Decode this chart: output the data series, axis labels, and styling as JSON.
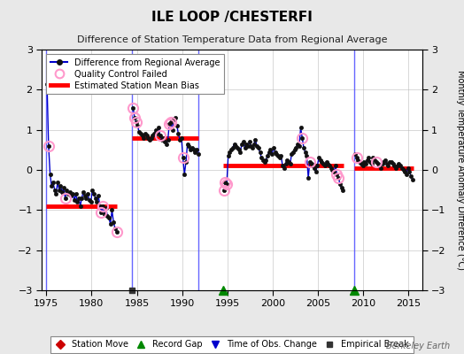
{
  "title": "ILE LOOP /CHESTERFI",
  "subtitle": "Difference of Station Temperature Data from Regional Average",
  "ylabel_right": "Monthly Temperature Anomaly Difference (°C)",
  "xlim": [
    1974.5,
    2016.5
  ],
  "ylim": [
    -3,
    3
  ],
  "yticks": [
    -3,
    -2,
    -1,
    0,
    1,
    2,
    3
  ],
  "xticks": [
    1975,
    1980,
    1985,
    1990,
    1995,
    2000,
    2005,
    2010,
    2015
  ],
  "bg_color": "#e8e8e8",
  "plot_bg_color": "#ffffff",
  "segments": [
    {
      "x_start": 1975.0,
      "x_end": 1982.8,
      "bias": -0.9,
      "data_x": [
        1975.08,
        1975.25,
        1975.42,
        1975.58,
        1975.75,
        1975.92,
        1976.08,
        1976.25,
        1976.42,
        1976.58,
        1976.75,
        1976.92,
        1977.08,
        1977.25,
        1977.42,
        1977.58,
        1977.75,
        1977.92,
        1978.08,
        1978.25,
        1978.42,
        1978.58,
        1978.75,
        1978.92,
        1979.08,
        1979.25,
        1979.42,
        1979.58,
        1979.75,
        1979.92,
        1980.08,
        1980.25,
        1980.42,
        1980.58,
        1980.75,
        1980.92,
        1981.08,
        1981.25,
        1981.42,
        1981.58,
        1981.75,
        1981.92,
        1982.08,
        1982.25,
        1982.42,
        1982.58,
        1982.75
      ],
      "data_y": [
        2.15,
        0.6,
        -0.1,
        -0.4,
        -0.3,
        -0.5,
        -0.6,
        -0.3,
        -0.5,
        -0.4,
        -0.55,
        -0.45,
        -0.7,
        -0.5,
        -0.6,
        -0.55,
        -0.65,
        -0.6,
        -0.75,
        -0.6,
        -0.8,
        -0.7,
        -0.9,
        -0.7,
        -0.55,
        -0.65,
        -0.7,
        -0.6,
        -0.75,
        -0.8,
        -0.5,
        -0.6,
        -0.7,
        -0.8,
        -0.65,
        -0.9,
        -1.05,
        -0.9,
        -1.1,
        -0.95,
        -1.15,
        -1.2,
        -1.35,
        -1.0,
        -1.3,
        -1.45,
        -1.55
      ],
      "qc_failed_idx": [
        1,
        12,
        36,
        37,
        46
      ]
    },
    {
      "x_start": 1984.5,
      "x_end": 1991.8,
      "bias": 0.8,
      "data_x": [
        1984.58,
        1984.75,
        1984.92,
        1985.08,
        1985.25,
        1985.42,
        1985.58,
        1985.75,
        1985.92,
        1986.08,
        1986.25,
        1986.42,
        1986.58,
        1986.75,
        1986.92,
        1987.08,
        1987.25,
        1987.42,
        1987.58,
        1987.75,
        1987.92,
        1988.08,
        1988.25,
        1988.42,
        1988.58,
        1988.75,
        1988.92,
        1989.08,
        1989.25,
        1989.42,
        1989.58,
        1989.75,
        1989.92,
        1990.08,
        1990.25,
        1990.42,
        1990.58,
        1990.75,
        1990.92,
        1991.08,
        1991.25,
        1991.42,
        1991.58,
        1991.75
      ],
      "data_y": [
        1.55,
        1.3,
        1.2,
        1.1,
        0.95,
        0.9,
        0.85,
        0.8,
        0.9,
        0.85,
        0.8,
        0.75,
        0.8,
        0.85,
        0.9,
        1.0,
        0.9,
        1.05,
        0.85,
        0.75,
        0.8,
        0.7,
        0.65,
        0.75,
        1.15,
        1.2,
        1.0,
        1.25,
        1.3,
        1.1,
        0.9,
        0.75,
        0.8,
        0.3,
        -0.1,
        0.2,
        0.65,
        0.6,
        0.5,
        0.55,
        0.5,
        0.45,
        0.5,
        0.4
      ],
      "qc_failed_idx": [
        0,
        1,
        2,
        18,
        24,
        25,
        33
      ]
    },
    {
      "x_start": 1994.5,
      "x_end": 2007.8,
      "bias": 0.1,
      "data_x": [
        1994.58,
        1994.75,
        1994.92,
        1995.08,
        1995.25,
        1995.42,
        1995.58,
        1995.75,
        1995.92,
        1996.08,
        1996.25,
        1996.42,
        1996.58,
        1996.75,
        1996.92,
        1997.08,
        1997.25,
        1997.42,
        1997.58,
        1997.75,
        1997.92,
        1998.08,
        1998.25,
        1998.42,
        1998.58,
        1998.75,
        1998.92,
        1999.08,
        1999.25,
        1999.42,
        1999.58,
        1999.75,
        1999.92,
        2000.08,
        2000.25,
        2000.42,
        2000.58,
        2000.75,
        2000.92,
        2001.08,
        2001.25,
        2001.42,
        2001.58,
        2001.75,
        2001.92,
        2002.08,
        2002.25,
        2002.42,
        2002.58,
        2002.75,
        2002.92,
        2003.08,
        2003.25,
        2003.42,
        2003.58,
        2003.75,
        2003.92,
        2004.08,
        2004.25,
        2004.42,
        2004.58,
        2004.75,
        2004.92,
        2005.08,
        2005.25,
        2005.42,
        2005.58,
        2005.75,
        2005.92,
        2006.08,
        2006.25,
        2006.42,
        2006.58,
        2006.75,
        2006.92,
        2007.08,
        2007.25,
        2007.42,
        2007.58,
        2007.75
      ],
      "data_y": [
        -0.5,
        -0.3,
        -0.35,
        0.35,
        0.45,
        0.5,
        0.55,
        0.65,
        0.6,
        0.55,
        0.5,
        0.45,
        0.65,
        0.7,
        0.55,
        0.65,
        0.6,
        0.7,
        0.6,
        0.55,
        0.65,
        0.75,
        0.6,
        0.55,
        0.45,
        0.3,
        0.25,
        0.2,
        0.25,
        0.35,
        0.45,
        0.5,
        0.4,
        0.55,
        0.45,
        0.4,
        0.35,
        0.3,
        0.35,
        0.1,
        0.05,
        0.15,
        0.25,
        0.2,
        0.15,
        0.4,
        0.45,
        0.5,
        0.55,
        0.65,
        0.6,
        1.05,
        0.8,
        0.55,
        0.45,
        0.35,
        -0.2,
        0.2,
        0.15,
        0.1,
        0.05,
        -0.05,
        0.1,
        0.3,
        0.25,
        0.2,
        0.15,
        0.1,
        0.2,
        0.15,
        0.1,
        0.05,
        0.0,
        -0.05,
        0.1,
        -0.1,
        -0.2,
        -0.35,
        -0.45,
        -0.5
      ],
      "qc_failed_idx": [
        0,
        1,
        2,
        52,
        57,
        75,
        76
      ]
    },
    {
      "x_start": 2009.0,
      "x_end": 2015.5,
      "bias": 0.05,
      "data_x": [
        2009.08,
        2009.25,
        2009.42,
        2009.58,
        2009.75,
        2009.92,
        2010.08,
        2010.25,
        2010.42,
        2010.58,
        2010.75,
        2010.92,
        2011.08,
        2011.25,
        2011.42,
        2011.58,
        2011.75,
        2011.92,
        2012.08,
        2012.25,
        2012.42,
        2012.58,
        2012.75,
        2012.92,
        2013.08,
        2013.25,
        2013.42,
        2013.58,
        2013.75,
        2013.92,
        2014.08,
        2014.25,
        2014.42,
        2014.58,
        2014.75,
        2014.92,
        2015.08,
        2015.25,
        2015.42
      ],
      "data_y": [
        0.4,
        0.3,
        0.25,
        0.2,
        0.15,
        0.1,
        0.2,
        0.15,
        0.25,
        0.3,
        0.2,
        0.15,
        0.3,
        0.25,
        0.2,
        0.15,
        0.1,
        0.05,
        0.15,
        0.2,
        0.25,
        0.15,
        0.1,
        0.2,
        0.2,
        0.15,
        0.1,
        0.05,
        0.1,
        0.15,
        0.1,
        0.05,
        0.0,
        -0.05,
        -0.1,
        0.05,
        -0.05,
        -0.15,
        -0.25
      ],
      "qc_failed_idx": [
        1,
        14
      ]
    }
  ],
  "vertical_lines": [
    {
      "x": 1975.0,
      "color": "#5555ff"
    },
    {
      "x": 1984.5,
      "color": "#5555ff"
    },
    {
      "x": 1991.8,
      "color": "#5555ff"
    },
    {
      "x": 2009.0,
      "color": "#5555ff"
    }
  ],
  "markers_bottom": [
    {
      "x": 1984.5,
      "type": "square",
      "color": "#333333"
    },
    {
      "x": 1994.5,
      "type": "triangle_up",
      "color": "#008800"
    },
    {
      "x": 2009.0,
      "type": "triangle_up",
      "color": "#008800"
    }
  ],
  "line_color": "#0000cc",
  "dot_color": "#111111",
  "qc_color": "#ff99cc",
  "bias_color": "#ff0000",
  "bias_linewidth": 3.5,
  "data_linewidth": 1.0,
  "dot_size": 3,
  "qc_markersize": 8,
  "watermark": "Berkeley Earth",
  "legend_items": [
    {
      "label": "Difference from Regional Average",
      "color": "#0000cc",
      "type": "line_dot"
    },
    {
      "label": "Quality Control Failed",
      "color": "#ff99cc",
      "type": "circle_open"
    },
    {
      "label": "Estimated Station Mean Bias",
      "color": "#ff0000",
      "type": "line"
    }
  ],
  "bottom_legend_items": [
    {
      "label": "Station Move",
      "color": "#cc0000",
      "type": "diamond"
    },
    {
      "label": "Record Gap",
      "color": "#008800",
      "type": "triangle_up"
    },
    {
      "label": "Time of Obs. Change",
      "color": "#0000cc",
      "type": "triangle_down"
    },
    {
      "label": "Empirical Break",
      "color": "#333333",
      "type": "square"
    }
  ]
}
